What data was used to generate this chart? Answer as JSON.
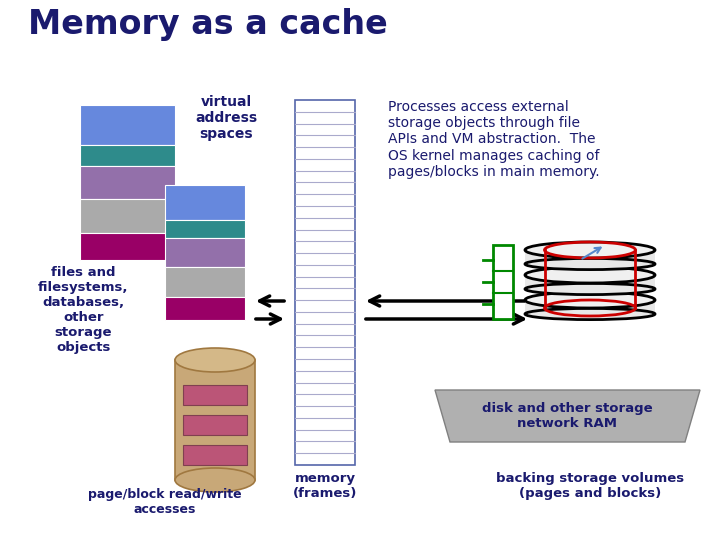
{
  "title": "Memory as a cache",
  "title_color": "#1a1a6e",
  "bg_color": "#ffffff",
  "text_color": "#1a1a6e",
  "va_label": "virtual\naddress\nspaces",
  "va_colors": [
    "#6688dd",
    "#2e8b8b",
    "#9370aa",
    "#aaaaaa",
    "#990066"
  ],
  "description": "Processes access external\nstorage objects through file\nAPIs and VM abstraction.  The\nOS kernel manages caching of\npages/blocks in main memory.",
  "left_label": "files and\nfilesystems,\ndatabases,\nother\nstorage\nobjects",
  "bottom_left_label": "page/block read/write\naccesses",
  "bottom_center_label": "memory\n(frames)",
  "bottom_right_label": "backing storage volumes\n(pages and blocks)",
  "disk_label": "disk and other storage\nnetwork RAM",
  "cylinder_color": "#c8a878",
  "cylinder_dark": "#a07840",
  "cylinder_rect_color": "#bb5577",
  "disk_trap_color": "#b0b0b0",
  "disk_trap_edge": "#808080"
}
